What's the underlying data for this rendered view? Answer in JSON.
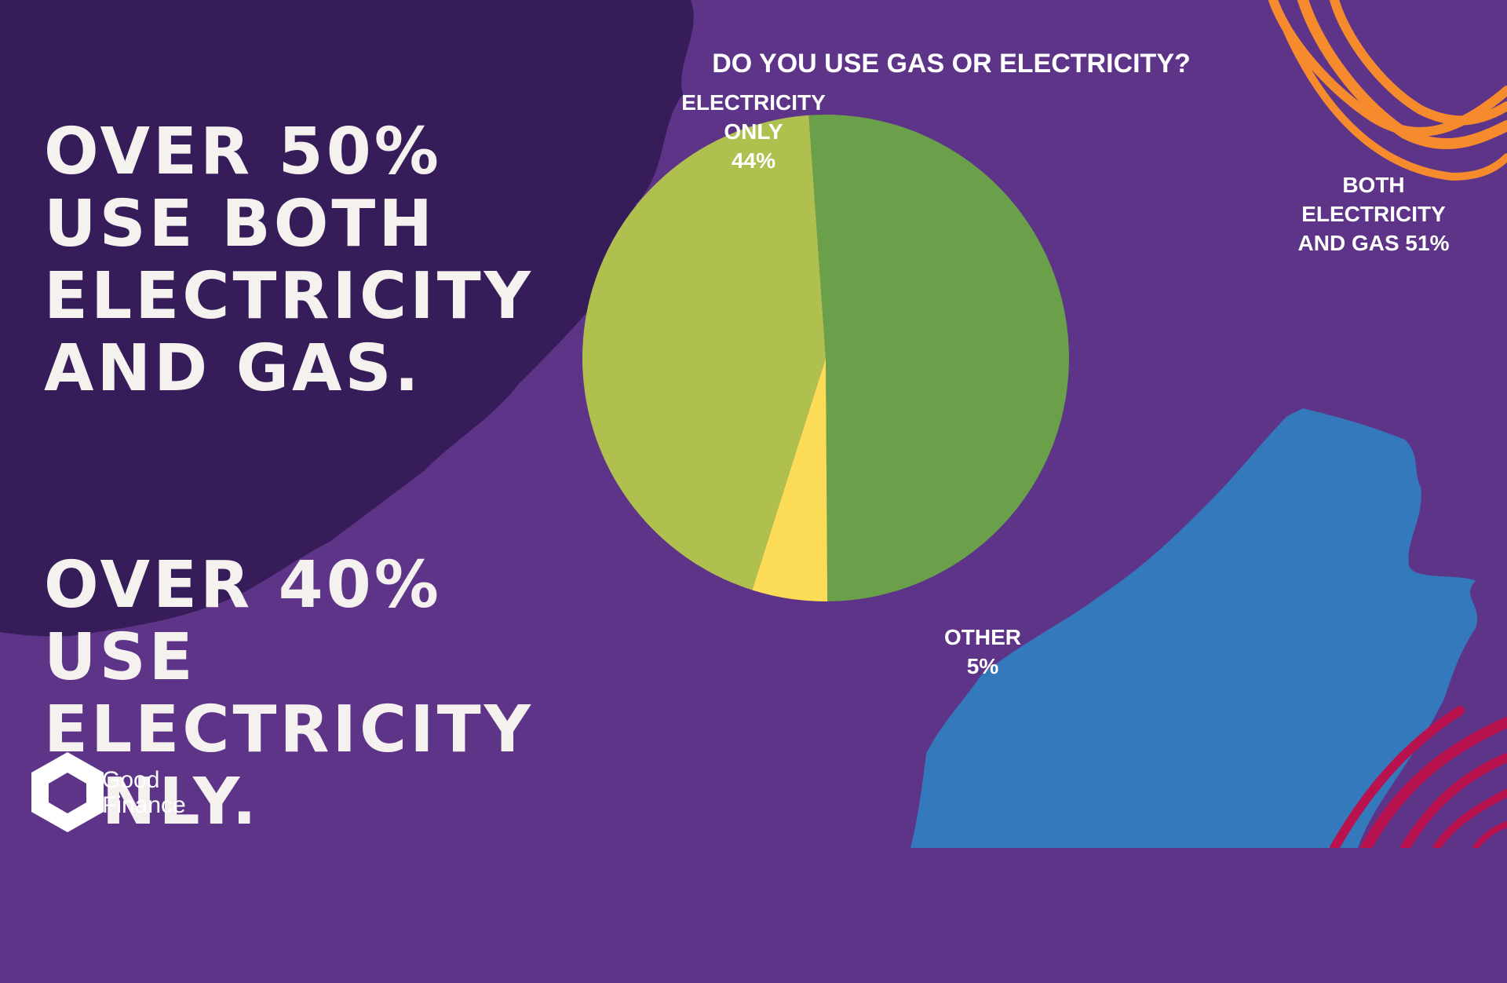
{
  "headlines": [
    "Over 50%\nuse both\nelectricity\nand gas.",
    "Over 40%\nuse\nelectricity\nonly."
  ],
  "brand": {
    "line1": "Good",
    "line2": "Finance"
  },
  "colors": {
    "background": "#5e3489",
    "dark_brush": "#361d5a",
    "blue_brush": "#3479bb",
    "orange_strokes": "#f58b2d",
    "magenta_strokes": "#b8134f"
  },
  "chart_data": {
    "type": "pie",
    "title": "DO YOU USE GAS OR ELECTRICITY?",
    "slices": [
      {
        "label_lines": [
          "BOTH",
          "ELECTRICITY",
          "AND GAS 51%"
        ],
        "value": 51,
        "color": "#6aa04a"
      },
      {
        "label_lines": [
          "OTHER",
          "5%"
        ],
        "value": 5,
        "color": "#fcdc56"
      },
      {
        "label_lines": [
          "ELECTRICITY",
          "ONLY",
          "44%"
        ],
        "value": 44,
        "color": "#afc04f"
      }
    ]
  }
}
